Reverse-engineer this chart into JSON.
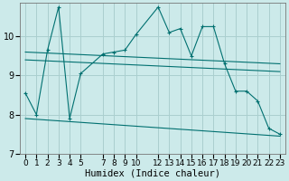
{
  "xlabel": "Humidex (Indice chaleur)",
  "bg_color": "#cceaea",
  "grid_color": "#aacfcf",
  "line_color": "#007070",
  "xlim": [
    -0.5,
    23.5
  ],
  "ylim": [
    7.0,
    10.85
  ],
  "yticks": [
    7,
    8,
    9,
    10
  ],
  "xticks": [
    0,
    1,
    2,
    3,
    4,
    5,
    7,
    8,
    9,
    10,
    12,
    13,
    14,
    15,
    16,
    17,
    18,
    19,
    20,
    21,
    22,
    23
  ],
  "series1_x": [
    0,
    1,
    2,
    3,
    4,
    5,
    7,
    8,
    9,
    10,
    12,
    13,
    14,
    15,
    16,
    17,
    18,
    19,
    20,
    21,
    22,
    23
  ],
  "series1_y": [
    8.55,
    8.0,
    9.65,
    10.75,
    7.9,
    9.05,
    9.55,
    9.6,
    9.65,
    10.05,
    10.75,
    10.1,
    10.2,
    9.5,
    10.25,
    10.25,
    9.3,
    8.6,
    8.6,
    8.35,
    7.65,
    7.5
  ],
  "series2_x": [
    0,
    23
  ],
  "series2_y": [
    9.6,
    9.3
  ],
  "series3_x": [
    0,
    23
  ],
  "series3_y": [
    9.4,
    9.1
  ],
  "series4_x": [
    0,
    23
  ],
  "series4_y": [
    7.9,
    7.45
  ],
  "tick_fontsize": 6.5,
  "label_fontsize": 7.5
}
